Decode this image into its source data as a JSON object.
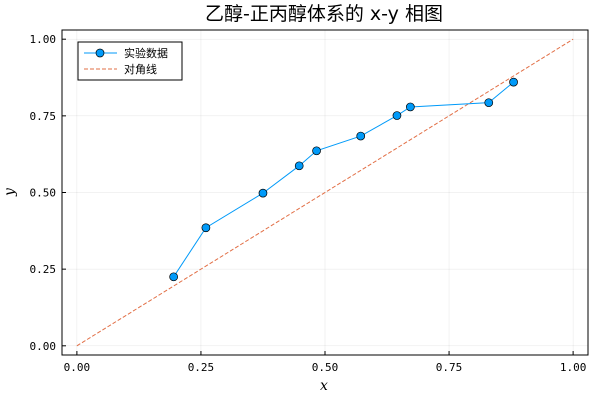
{
  "chart_data": {
    "type": "line",
    "title": "乙醇-正丙醇体系的 x-y 相图",
    "xlabel": "x",
    "ylabel": "y",
    "xlim": [
      -0.03,
      1.03
    ],
    "ylim": [
      -0.03,
      1.03
    ],
    "x_ticks": [
      "0.00",
      "0.25",
      "0.50",
      "0.75",
      "1.00"
    ],
    "y_ticks": [
      "0.00",
      "0.25",
      "0.50",
      "0.75",
      "1.00"
    ],
    "x_tick_values": [
      0,
      0.25,
      0.5,
      0.75,
      1.0
    ],
    "y_tick_values": [
      0,
      0.25,
      0.5,
      0.75,
      1.0
    ],
    "grid": true,
    "legend_position": "top-left",
    "series": [
      {
        "name": "实验数据",
        "style": "line-with-markers",
        "color": "#009af9",
        "x": [
          0.195,
          0.26,
          0.375,
          0.448,
          0.483,
          0.572,
          0.645,
          0.672,
          0.83,
          0.88
        ],
        "y": [
          0.225,
          0.385,
          0.498,
          0.587,
          0.636,
          0.684,
          0.751,
          0.779,
          0.793,
          0.86
        ]
      },
      {
        "name": "对角线",
        "style": "dashed-line",
        "color": "#e26f46",
        "x": [
          0,
          1
        ],
        "y": [
          0,
          1
        ]
      }
    ]
  }
}
